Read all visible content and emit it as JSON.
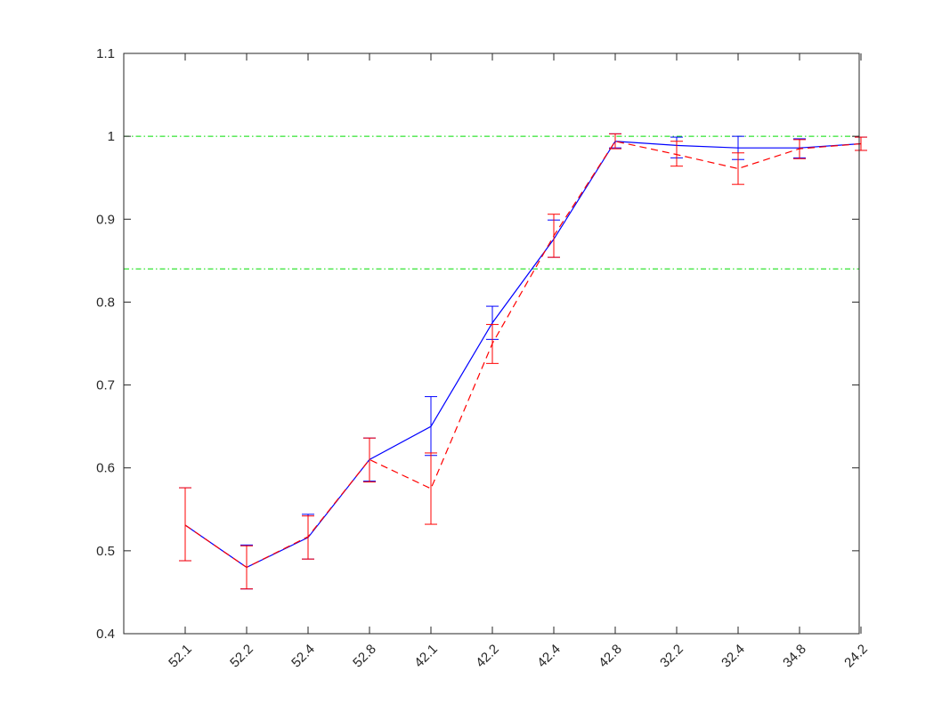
{
  "chart_data": {
    "type": "line",
    "title": "",
    "xlabel": "",
    "ylabel": "",
    "categories": [
      "52.1",
      "52.2",
      "52.4",
      "52.8",
      "42.1",
      "42.2",
      "42.4",
      "42.8",
      "32.2",
      "32.4",
      "34.8",
      "24.2"
    ],
    "ylim": [
      0.4,
      1.1
    ],
    "yticks": [
      "0.4",
      "0.5",
      "0.6",
      "0.7",
      "0.8",
      "0.9",
      "1",
      "1.1"
    ],
    "grid": false,
    "series": [
      {
        "name": "series-blue-solid",
        "color": "#0000ff",
        "style": "solid",
        "values": [
          0.531,
          0.48,
          0.516,
          0.61,
          0.65,
          0.775,
          0.876,
          0.994,
          0.989,
          0.986,
          0.986,
          0.991
        ],
        "err_low": [
          0.488,
          0.454,
          0.49,
          0.584,
          0.615,
          0.755,
          0.854,
          0.986,
          0.974,
          0.972,
          0.974,
          0.983
        ],
        "err_high": [
          0.576,
          0.507,
          0.544,
          0.636,
          0.686,
          0.795,
          0.899,
          1.003,
          0.999,
          1.0,
          0.997,
          0.999
        ]
      },
      {
        "name": "series-red-dashed",
        "color": "#ff0000",
        "style": "dashed",
        "values": [
          0.531,
          0.48,
          0.517,
          0.61,
          0.575,
          0.75,
          0.88,
          0.994,
          0.978,
          0.961,
          0.985,
          0.991
        ],
        "err_low": [
          0.488,
          0.454,
          0.49,
          0.583,
          0.532,
          0.726,
          0.854,
          0.985,
          0.964,
          0.942,
          0.973,
          0.983
        ],
        "err_high": [
          0.576,
          0.506,
          0.542,
          0.636,
          0.618,
          0.773,
          0.906,
          1.003,
          0.994,
          0.98,
          0.996,
          0.999
        ]
      }
    ],
    "reference_lines": [
      {
        "name": "upper-reference-line",
        "y": 1.0,
        "color": "#00dd00"
      },
      {
        "name": "lower-reference-line",
        "y": 0.84,
        "color": "#00dd00"
      }
    ]
  }
}
